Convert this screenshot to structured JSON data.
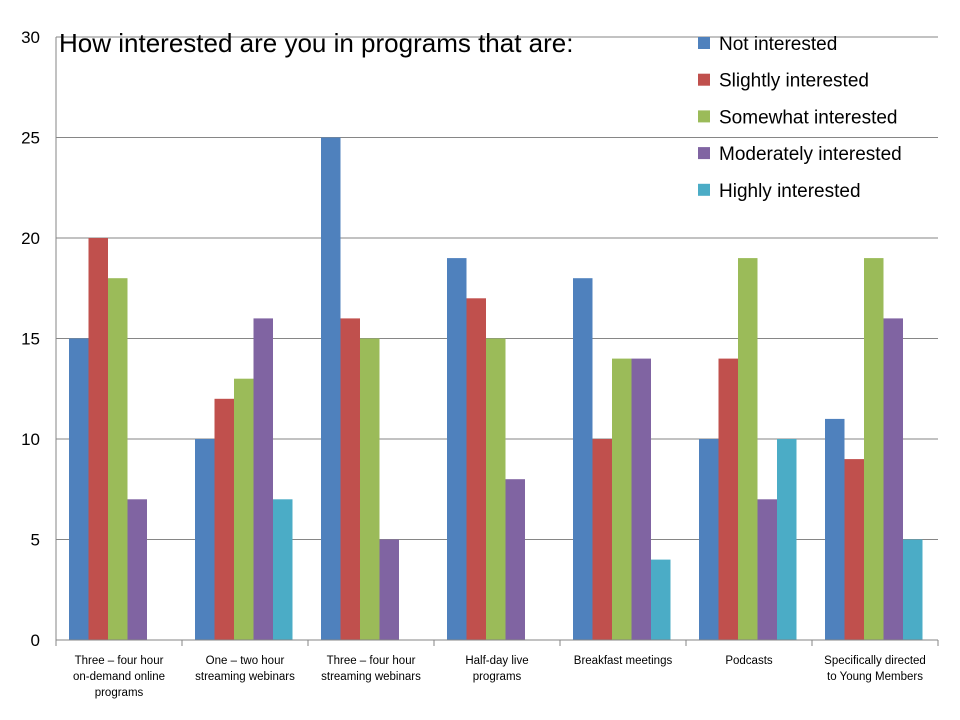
{
  "chart_data": {
    "type": "bar",
    "title": "How interested are you in programs that are:",
    "xlabel": "",
    "ylabel": "",
    "ylim": [
      0,
      30
    ],
    "yticks": [
      0,
      5,
      10,
      15,
      20,
      25,
      30
    ],
    "grid": true,
    "legend_position": "top-right",
    "categories": [
      [
        "Three – four hour",
        "on-demand online",
        "programs"
      ],
      [
        "One – two hour",
        "streaming webinars"
      ],
      [
        "Three – four hour",
        "streaming webinars"
      ],
      [
        "Half-day live",
        "programs"
      ],
      [
        "Breakfast meetings"
      ],
      [
        "Podcasts"
      ],
      [
        "Specifically directed",
        "to Young Members"
      ]
    ],
    "series": [
      {
        "name": "Not interested",
        "color": "#4F81BD",
        "values": [
          15,
          10,
          25,
          19,
          18,
          10,
          11
        ]
      },
      {
        "name": "Slightly interested",
        "color": "#C0504D",
        "values": [
          20,
          12,
          16,
          17,
          10,
          14,
          9
        ]
      },
      {
        "name": "Somewhat interested",
        "color": "#9BBB59",
        "values": [
          18,
          13,
          15,
          15,
          14,
          19,
          19
        ]
      },
      {
        "name": "Moderately interested",
        "color": "#8064A2",
        "values": [
          7,
          16,
          5,
          8,
          14,
          7,
          16
        ]
      },
      {
        "name": "Highly interested",
        "color": "#4BACC6",
        "values": [
          0,
          7,
          0,
          0,
          4,
          10,
          5
        ]
      }
    ]
  }
}
